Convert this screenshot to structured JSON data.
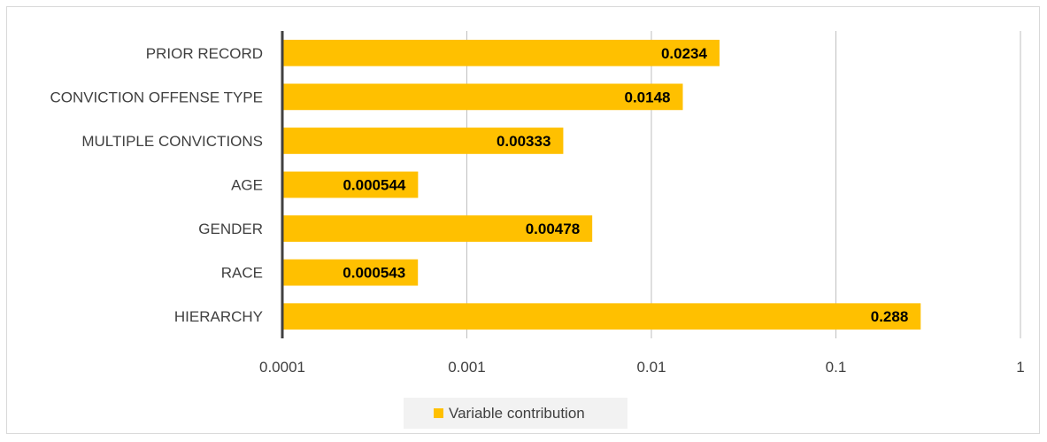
{
  "chart_data": {
    "type": "bar",
    "orientation": "horizontal",
    "x_scale": "log",
    "xlim": [
      0.0001,
      1
    ],
    "x_ticks": [
      "0.0001",
      "0.001",
      "0.01",
      "0.1",
      "1"
    ],
    "grid": "vertical",
    "categories": [
      "PRIOR RECORD",
      "CONVICTION OFFENSE TYPE",
      "MULTIPLE CONVICTIONS",
      "AGE",
      "GENDER",
      "RACE",
      "HIERARCHY"
    ],
    "series": [
      {
        "name": "Variable contribution",
        "values": [
          0.0234,
          0.0148,
          0.00333,
          0.000544,
          0.00478,
          0.000543,
          0.288
        ],
        "labels": [
          "0.0234",
          "0.0148",
          "0.00333",
          "0.000544",
          "0.00478",
          "0.000543",
          "0.288"
        ]
      }
    ],
    "legend_position": "bottom",
    "colors": {
      "bar": "#FFC000",
      "grid": "#bfbfbf",
      "axis": "#404040",
      "frame": "#d9d9d9"
    }
  }
}
